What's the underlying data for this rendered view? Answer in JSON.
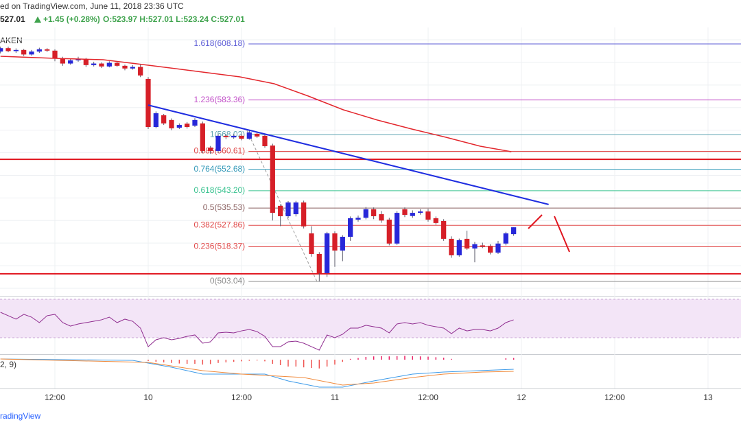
{
  "header": {
    "source": "ed on TradingView.com, June 11, 2018 23:36 UTC",
    "quote": "527.01",
    "change": "+1.45 (+0.28%)",
    "ohlc": "O:523.97 H:527.01 L:523.24 C:527.01",
    "exchange": "AKEN",
    "macd_label": "2, 9)",
    "brand": "radingView"
  },
  "chart_data": {
    "type": "candlestick",
    "xlim": [
      -0.06,
      95.24
    ],
    "xticks": [
      {
        "value": 7,
        "label": "12:00"
      },
      {
        "value": 19,
        "label": "10"
      },
      {
        "value": 31,
        "label": "12:00"
      },
      {
        "value": 43,
        "label": "11"
      },
      {
        "value": 55,
        "label": "12:00"
      },
      {
        "value": 67,
        "label": "12"
      },
      {
        "value": 79,
        "label": "12:00"
      },
      {
        "value": 91,
        "label": "13"
      }
    ],
    "ylim": [
      496.96,
      615.47
    ],
    "ygrid": [
      500,
      510,
      520,
      530,
      540,
      550,
      560,
      570,
      580,
      590,
      600,
      610
    ],
    "up_color": "#2727d9",
    "down_color": "#d61f28",
    "wick_color": "#5a5a6a",
    "ohlc": [
      [
        604.8,
        607.0,
        604.0,
        606.3
      ],
      [
        606.3,
        607.0,
        604.5,
        605.0
      ],
      [
        605.0,
        606.2,
        604.2,
        605.5
      ],
      [
        605.5,
        606.0,
        602.8,
        603.5
      ],
      [
        603.5,
        605.5,
        603.0,
        604.8
      ],
      [
        604.8,
        606.5,
        604.2,
        605.8
      ],
      [
        605.8,
        606.3,
        604.6,
        605.2
      ],
      [
        605.2,
        605.8,
        600.5,
        601.8
      ],
      [
        601.8,
        602.5,
        598.5,
        599.5
      ],
      [
        599.5,
        601.6,
        599.0,
        600.9
      ],
      [
        600.9,
        602.5,
        600.3,
        601.5
      ],
      [
        601.5,
        602.0,
        598.0,
        598.8
      ],
      [
        598.8,
        600.3,
        598.2,
        599.5
      ],
      [
        599.5,
        600.0,
        597.5,
        598.2
      ],
      [
        598.2,
        600.5,
        597.8,
        599.8
      ],
      [
        599.8,
        600.4,
        598.0,
        598.5
      ],
      [
        598.5,
        599.0,
        596.5,
        597.3
      ],
      [
        597.3,
        598.8,
        596.8,
        598.0
      ],
      [
        598.0,
        599.0,
        593.5,
        594.2
      ],
      [
        592.7,
        593.5,
        570.5,
        571.4
      ],
      [
        571.4,
        578.3,
        570.8,
        577.5
      ],
      [
        576.6,
        577.2,
        572.3,
        573.0
      ],
      [
        574.5,
        575.2,
        570.0,
        570.8
      ],
      [
        571.1,
        573.0,
        570.5,
        572.3
      ],
      [
        572.9,
        573.6,
        570.7,
        571.4
      ],
      [
        572.0,
        575.3,
        571.4,
        574.5
      ],
      [
        573.0,
        573.8,
        559.8,
        560.8
      ],
      [
        562.3,
        563.0,
        559.5,
        560.8
      ],
      [
        560.8,
        568.3,
        560.0,
        567.5
      ],
      [
        567.5,
        568.2,
        566.0,
        566.9
      ],
      [
        566.8,
        568.3,
        566.2,
        567.5
      ],
      [
        567.5,
        568.4,
        565.5,
        566.2
      ],
      [
        566.2,
        569.8,
        565.8,
        569.0
      ],
      [
        568.4,
        569.2,
        566.6,
        567.2
      ],
      [
        567.5,
        568.1,
        562.2,
        562.9
      ],
      [
        563.2,
        564.0,
        530.0,
        533.4
      ],
      [
        536.5,
        537.2,
        527.5,
        531.9
      ],
      [
        531.9,
        538.6,
        531.0,
        538.0
      ],
      [
        532.8,
        538.7,
        531.8,
        538.0
      ],
      [
        538.0,
        538.8,
        526.5,
        527.4
      ],
      [
        524.3,
        527.5,
        514.0,
        515.2
      ],
      [
        515.2,
        516.0,
        503.0,
        506.7
      ],
      [
        506.7,
        525.0,
        505.0,
        524.3
      ],
      [
        524.3,
        525.2,
        509.5,
        516.7
      ],
      [
        516.7,
        523.5,
        512.0,
        522.8
      ],
      [
        522.8,
        531.8,
        521.0,
        531.0
      ],
      [
        530.4,
        532.2,
        529.5,
        531.2
      ],
      [
        531.2,
        536.0,
        530.5,
        535.0
      ],
      [
        535.0,
        535.8,
        530.6,
        531.9
      ],
      [
        532.8,
        534.2,
        529.0,
        530.0
      ],
      [
        530.4,
        531.2,
        519.0,
        519.8
      ],
      [
        519.8,
        534.2,
        519.2,
        533.4
      ],
      [
        535.0,
        535.8,
        531.5,
        532.5
      ],
      [
        532.0,
        534.5,
        531.2,
        533.4
      ],
      [
        533.4,
        535.0,
        532.6,
        534.0
      ],
      [
        534.0,
        535.2,
        529.5,
        530.4
      ],
      [
        531.0,
        531.8,
        528.2,
        528.9
      ],
      [
        529.8,
        530.6,
        521.0,
        521.9
      ],
      [
        521.9,
        523.0,
        513.5,
        514.6
      ],
      [
        514.6,
        522.0,
        514.0,
        521.3
      ],
      [
        521.9,
        525.5,
        517.0,
        517.6
      ],
      [
        517.6,
        520.5,
        511.5,
        519.5
      ],
      [
        519.0,
        520.2,
        517.8,
        518.5
      ],
      [
        518.8,
        519.5,
        515.0,
        515.8
      ],
      [
        515.8,
        521.0,
        515.2,
        519.8
      ],
      [
        519.8,
        525.0,
        519.0,
        524.3
      ],
      [
        523.97,
        527.01,
        523.24,
        527.01
      ]
    ],
    "ma": {
      "color": "#e3262c",
      "x": [
        0,
        7,
        13.2,
        19,
        24.6,
        30.8,
        35.2,
        39.6,
        44.1,
        48.5,
        52.9,
        57.3,
        61.7,
        65.7
      ],
      "values": [
        602.71,
        601.79,
        601.19,
        598.76,
        596.32,
        593.59,
        590.55,
        585.08,
        579.01,
        574.45,
        570.5,
        566.85,
        562.9,
        560.47
      ]
    },
    "trendline": {
      "color": "#1f2de0",
      "x": [
        19,
        70.5
      ],
      "values": [
        581.1,
        537.1
      ]
    },
    "fib_path": {
      "color": "#9a9a9a",
      "x": [
        31.7,
        40.7
      ],
      "values": [
        569.9,
        503.04
      ]
    },
    "levels": {
      "color": "#e0141e",
      "values": [
        557.1,
        506.4
      ]
    },
    "fib_start": 31.9,
    "fib": [
      {
        "label": "1.618(608.18)",
        "value": 608.18,
        "color": "#5b5bd6"
      },
      {
        "label": "1.236(583.36)",
        "value": 583.36,
        "color": "#c14ec8"
      },
      {
        "label": "1(568.02)",
        "value": 568.02,
        "color": "#5ea3b0"
      },
      {
        "label": "0.886(560.61)",
        "value": 560.61,
        "color": "#e04848"
      },
      {
        "label": "0.764(552.68)",
        "value": 552.68,
        "color": "#3399b8"
      },
      {
        "label": "0.618(543.20)",
        "value": 543.2,
        "color": "#38c28f"
      },
      {
        "label": "0.5(535.53)",
        "value": 535.53,
        "color": "#8a6060"
      },
      {
        "label": "0.382(527.86)",
        "value": 527.86,
        "color": "#e04848"
      },
      {
        "label": "0.236(518.37)",
        "value": 518.37,
        "color": "#e04848"
      },
      {
        "label": "0(503.04)",
        "value": 503.04,
        "color": "#8d8d8d"
      }
    ],
    "rsi": {
      "ylim": [
        13.6,
        72.1
      ],
      "band": [
        30,
        70
      ],
      "band_color": "#f3e5f7",
      "color": "#8e2a8e",
      "values": [
        56.4,
        52.9,
        49.3,
        54.3,
        51.4,
        45.7,
        52.9,
        54.3,
        45.7,
        42.1,
        44.3,
        45.7,
        47.1,
        48.6,
        51.4,
        45.7,
        49.3,
        47.1,
        40.0,
        20.7,
        27.9,
        30.0,
        27.9,
        29.3,
        31.4,
        32.9,
        24.3,
        25.7,
        35.0,
        35.7,
        35.0,
        37.1,
        38.6,
        36.4,
        31.4,
        20.7,
        20.7,
        25.7,
        26.4,
        24.3,
        20.7,
        17.1,
        32.9,
        30.0,
        33.6,
        40.0,
        40.0,
        42.9,
        41.4,
        40.0,
        35.0,
        44.3,
        45.7,
        44.3,
        45.7,
        42.9,
        41.4,
        40.0,
        34.3,
        40.0,
        37.1,
        38.6,
        38.6,
        37.1,
        40.0,
        45.7,
        48.6
      ]
    },
    "macd": {
      "ylim": [
        -10.25,
        1.75
      ],
      "macd": {
        "color": "#3d9be9",
        "x": [
          0,
          17,
          22,
          26,
          31,
          34,
          37,
          41,
          44,
          48,
          53,
          57,
          66
        ],
        "values": [
          0.25,
          -0.25,
          -2.75,
          -5.25,
          -5.25,
          -5.25,
          -7.75,
          -10,
          -10,
          -7.75,
          -5.25,
          -4.5,
          -3.5
        ]
      },
      "signal": {
        "color": "#f08a3c",
        "x": [
          0,
          19,
          26,
          31,
          39,
          44,
          48,
          53,
          57,
          62,
          66
        ],
        "values": [
          0.25,
          -1,
          -4,
          -5.25,
          -6.5,
          -9.25,
          -8.5,
          -6.5,
          -5.25,
          -4.5,
          -4.25
        ]
      },
      "hist": {
        "up_color": "#e91e63",
        "down_color": "#ef5350",
        "values": [
          null,
          null,
          null,
          null,
          null,
          null,
          null,
          null,
          null,
          null,
          null,
          null,
          null,
          null,
          null,
          null,
          null,
          null,
          null,
          -0.5,
          -0.8,
          -1,
          -1.2,
          -1.4,
          -1.5,
          -1.5,
          -1.8,
          -1.6,
          -1.2,
          -1,
          -0.8,
          -0.6,
          -0.4,
          -0.3,
          -0.6,
          -1.5,
          -2,
          -2.5,
          -2.5,
          -2.8,
          -3,
          -3.2,
          -2.5,
          -1.8,
          -0.8,
          0.3,
          0.6,
          1,
          1.2,
          1.3,
          1.2,
          1.3,
          1.4,
          1.3,
          1.2,
          1.1,
          0.9,
          0.7,
          0.3,
          null,
          null,
          null,
          null,
          null,
          null,
          0.5,
          0.6
        ]
      }
    }
  }
}
